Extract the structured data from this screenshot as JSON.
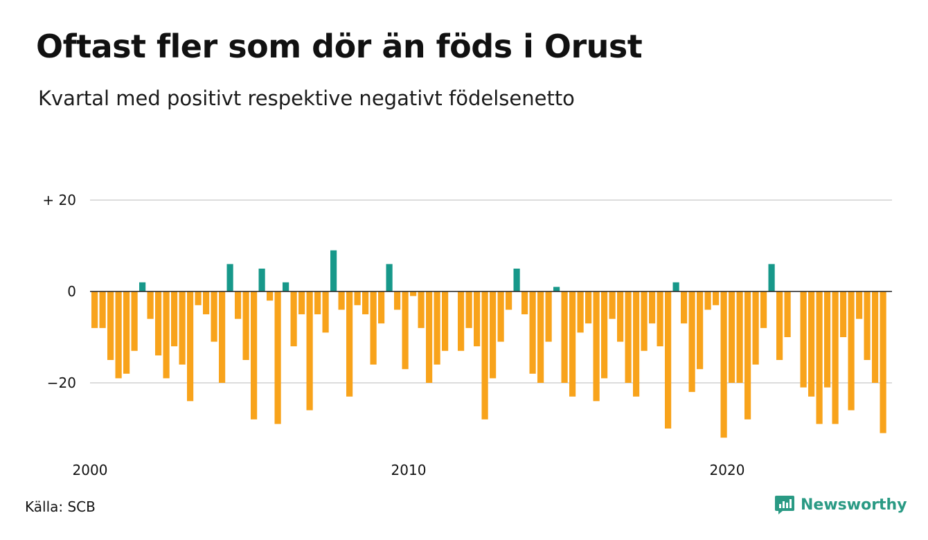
{
  "header": {
    "title": "Oftast fler som dör än föds i Orust",
    "subtitle": "Kvartal med positivt respektive negativt födelsenetto"
  },
  "footer": {
    "source": "Källa: SCB",
    "brand": "Newsworthy",
    "brand_icon": "newsworthy-logo-icon"
  },
  "colors": {
    "positive": "#17988a",
    "negative": "#f8a31b",
    "grid": "#dcdcdc",
    "zero_line": "#222222",
    "brand": "#2a9a84"
  },
  "chart_data": {
    "type": "bar",
    "title": "Oftast fler som dör än föds i Orust",
    "subtitle": "Kvartal med positivt respektive negativt födelsenetto",
    "x_start": "2000 Q1",
    "period": "quarter",
    "x_tick_labels": [
      "2000",
      "2010",
      "2020"
    ],
    "y_tick_labels": [
      "+ 20",
      "0",
      "−20"
    ],
    "y_ticks": [
      20,
      0,
      -20
    ],
    "ylim": [
      -35,
      20
    ],
    "grid": true,
    "legend": "none",
    "values": [
      -8,
      -8,
      -15,
      -19,
      -18,
      -13,
      2,
      -6,
      -14,
      -19,
      -12,
      -16,
      -24,
      -3,
      -5,
      -11,
      -20,
      6,
      -6,
      -15,
      -28,
      5,
      -2,
      -29,
      2,
      -12,
      -5,
      -26,
      -5,
      -9,
      9,
      -4,
      -23,
      -3,
      -5,
      -16,
      -7,
      6,
      -4,
      -17,
      -1,
      -8,
      -20,
      -16,
      -13,
      0,
      -13,
      -8,
      -12,
      -28,
      -19,
      -11,
      -4,
      5,
      -5,
      -18,
      -20,
      -11,
      1,
      -20,
      -23,
      -9,
      -7,
      -24,
      -19,
      -6,
      -11,
      -20,
      -23,
      -13,
      -7,
      -12,
      -30,
      2,
      -7,
      -22,
      -17,
      -4,
      -3,
      -32,
      -20,
      -20,
      -28,
      -16,
      -8,
      6,
      -15,
      -10,
      0,
      -21,
      -23,
      -29,
      -21,
      -29,
      -10,
      -26,
      -6,
      -15,
      -20,
      -31
    ]
  }
}
